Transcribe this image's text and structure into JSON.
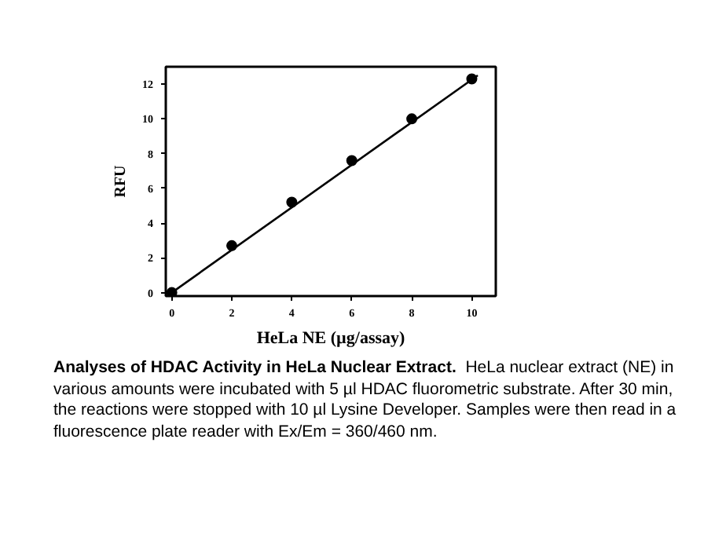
{
  "chart_data": {
    "type": "scatter",
    "title": "Analyses of HDAC Activity in HeLa Nuclear Extract.",
    "xlabel": "HeLa NE (µg/assay)",
    "ylabel": "RFU",
    "x": [
      0,
      2,
      4,
      6,
      8,
      10
    ],
    "series": [
      {
        "color": "#000000",
        "marker": "circle",
        "values": [
          0,
          2.7,
          5.2,
          7.6,
          10,
          12.3
        ]
      },
      {
        "type": "line",
        "color": "#000000",
        "marker": "none",
        "line_style": "solid",
        "x": [
          0,
          10.2
        ],
        "values": [
          0,
          12.5
        ]
      }
    ],
    "xlim": [
      -0.2,
      10.8
    ],
    "ylim": [
      -0.2,
      13
    ],
    "xticks": [
      0,
      2,
      4,
      6,
      8,
      10
    ],
    "yticks": [
      0,
      2,
      4,
      6,
      8,
      10,
      12
    ],
    "grid": false,
    "annotations": [
      "HeLa nuclear extract (NE) in various amounts were incubated with 5 µl HDAC fluorometric substrate.  After 30 min, the reactions were stopped with 10 µl Lysine Developer.  Samples were then read in a fluorescence plate reader with Ex/Em = 360/460 nm."
    ]
  }
}
